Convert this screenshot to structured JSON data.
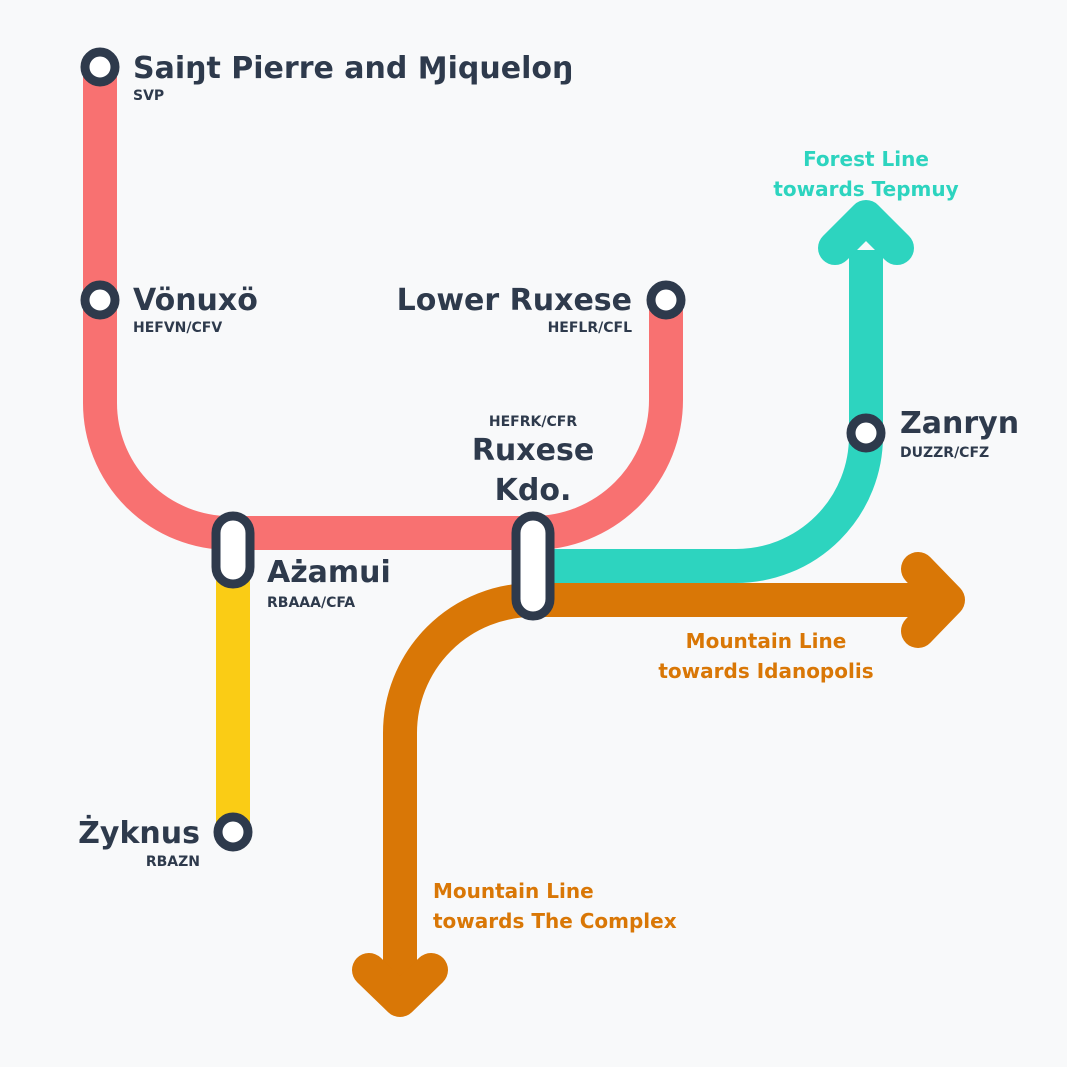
{
  "colors": {
    "background": "#f8f9fa",
    "red_line": "#f87171",
    "yellow_line": "#facc15",
    "forest_line": "#2dd4bf",
    "mountain_line": "#d97706",
    "station_ink": "#2e3a4c"
  },
  "stations": {
    "saint_pierre": {
      "name": "Saiŋt Pierre and Ɱiqueloŋ",
      "code": "SVP"
    },
    "vonuxo": {
      "name": "Vönuxö",
      "code": "HEFVN/CFV"
    },
    "lower_ruxese": {
      "name": "Lower Ruxese",
      "code": "HEFLR/CFL"
    },
    "ruxese_kdo": {
      "name_line1": "Ruxese",
      "name_line2": "Kdo.",
      "code": "HEFRK/CFR"
    },
    "azamui": {
      "name": "Ażamui",
      "code": "RBAAA/CFA"
    },
    "zyknus": {
      "name": "Żyknus",
      "code": "RBAZN"
    },
    "zanryn": {
      "name": "Zanryn",
      "code": "DUZZR/CFZ"
    }
  },
  "destinations": {
    "forest_north": {
      "line1": "Forest Line",
      "line2": "towards Tepmuy"
    },
    "mountain_east": {
      "line1": "Mountain Line",
      "line2": "towards Idanopolis"
    },
    "mountain_south": {
      "line1": "Mountain Line",
      "line2": "towards The Complex"
    }
  }
}
